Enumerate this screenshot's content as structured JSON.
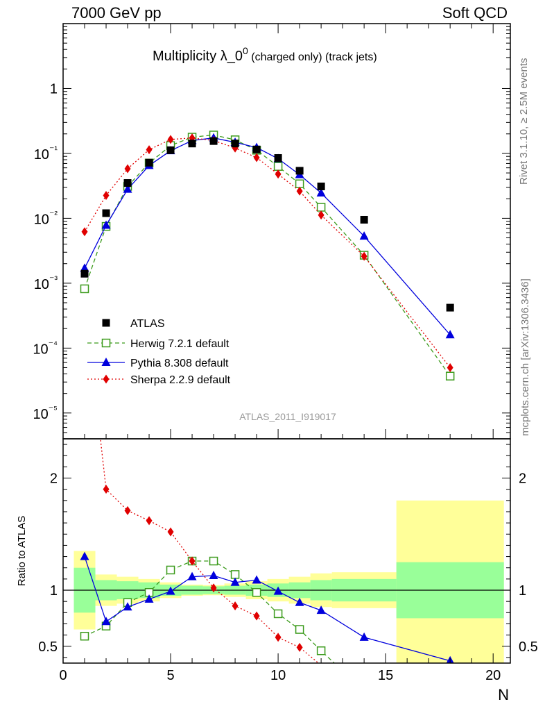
{
  "header": {
    "left": "7000 GeV pp",
    "right": "Soft QCD"
  },
  "side": {
    "rivet": "Rivet 3.1.10, ≥ 2.5M events",
    "mcplots": "mcplots.cern.ch [arXiv:1306.3436]"
  },
  "colors": {
    "atlas": "#000000",
    "herwig": "#3a9a1a",
    "pythia": "#0000dd",
    "sherpa": "#e00000",
    "band_inner": "#99ff99",
    "band_outer": "#ffff99"
  },
  "chart_data": [
    {
      "type": "scatter",
      "panel": "main",
      "title": "Multiplicity λ_0",
      "title_sup": "0",
      "title_suffix": "(charged only) (track jets)",
      "watermark": "ATLAS_2011_I919017",
      "yscale": "log",
      "xlim": [
        0,
        20.8
      ],
      "ylim": [
        4e-06,
        10
      ],
      "ytick_labels": [
        "10⁻⁵",
        "10⁻⁴",
        "10⁻³",
        "10⁻²",
        "10⁻¹",
        "1"
      ],
      "legend_position": "lower-left",
      "series": [
        {
          "name": "ATLAS",
          "style": "data",
          "x": [
            1,
            2,
            3,
            4,
            5,
            6,
            7,
            8,
            9,
            10,
            11,
            12,
            14,
            18
          ],
          "values": [
            0.0014,
            0.012,
            0.035,
            0.072,
            0.112,
            0.142,
            0.155,
            0.142,
            0.115,
            0.085,
            0.054,
            0.031,
            0.0095,
            0.00042
          ]
        },
        {
          "name": "Herwig 7.2.1 default",
          "style": "dashed",
          "marker": "open-square",
          "x": [
            1,
            2,
            3,
            4,
            5,
            6,
            7,
            8,
            9,
            10,
            11,
            12,
            14,
            18
          ],
          "values": [
            0.00082,
            0.0075,
            0.031,
            0.071,
            0.132,
            0.178,
            0.192,
            0.162,
            0.112,
            0.063,
            0.034,
            0.0148,
            0.0027,
            3.7e-05
          ]
        },
        {
          "name": "Pythia 8.308 default",
          "style": "solid",
          "marker": "triangle",
          "x": [
            1,
            2,
            3,
            4,
            5,
            6,
            7,
            8,
            9,
            10,
            11,
            12,
            14,
            18
          ],
          "values": [
            0.0017,
            0.0078,
            0.028,
            0.065,
            0.11,
            0.158,
            0.173,
            0.148,
            0.123,
            0.083,
            0.047,
            0.0245,
            0.0053,
            0.00016
          ]
        },
        {
          "name": "Sherpa 2.2.9 default",
          "style": "dotted",
          "marker": "diamond",
          "x": [
            1,
            2,
            3,
            4,
            5,
            6,
            7,
            8,
            9,
            10,
            11,
            12,
            14,
            18
          ],
          "values": [
            0.0062,
            0.0225,
            0.058,
            0.114,
            0.164,
            0.173,
            0.158,
            0.121,
            0.086,
            0.048,
            0.0262,
            0.0112,
            0.0026,
            5e-05
          ]
        }
      ]
    },
    {
      "type": "line",
      "panel": "ratio",
      "xlabel": "N",
      "ylabel": "Ratio to ATLAS",
      "xlim": [
        0,
        20.8
      ],
      "ylim": [
        0.35,
        2.35
      ],
      "xticks": [
        0,
        5,
        10,
        15,
        20
      ],
      "xtick_labels": [
        "0",
        "5",
        "10",
        "15",
        "20"
      ],
      "yticks": [
        0.5,
        1,
        2
      ],
      "ytick_labels": [
        "0.5",
        "1",
        "2"
      ],
      "reference_line": 1,
      "uncertainty_bands": {
        "bins": [
          [
            0.5,
            1.5
          ],
          [
            1.5,
            2.5
          ],
          [
            2.5,
            3.5
          ],
          [
            3.5,
            4.5
          ],
          [
            4.5,
            5.5
          ],
          [
            5.5,
            6.5
          ],
          [
            6.5,
            7.5
          ],
          [
            7.5,
            8.5
          ],
          [
            8.5,
            9.5
          ],
          [
            9.5,
            10.5
          ],
          [
            10.5,
            11.5
          ],
          [
            11.5,
            12.5
          ],
          [
            12.5,
            15.5
          ],
          [
            15.5,
            20.5
          ]
        ],
        "inner_half_width": [
          0.2,
          0.09,
          0.08,
          0.07,
          0.05,
          0.04,
          0.035,
          0.04,
          0.05,
          0.06,
          0.07,
          0.09,
          0.1,
          0.25
        ],
        "outer_half_width": [
          0.35,
          0.14,
          0.12,
          0.1,
          0.07,
          0.05,
          0.045,
          0.06,
          0.08,
          0.1,
          0.12,
          0.15,
          0.16,
          0.8
        ]
      },
      "series": [
        {
          "name": "Herwig 7.2.1 default",
          "style": "dashed",
          "marker": "open-square",
          "x": [
            1,
            2,
            3,
            4,
            5,
            6,
            7,
            8,
            9,
            10,
            11,
            12,
            13
          ],
          "values": [
            0.59,
            0.68,
            0.89,
            0.98,
            1.18,
            1.26,
            1.26,
            1.14,
            0.98,
            0.79,
            0.65,
            0.46,
            0.28
          ]
        },
        {
          "name": "Pythia 8.308 default",
          "style": "solid",
          "marker": "triangle",
          "x": [
            1,
            2,
            3,
            4,
            5,
            6,
            7,
            8,
            9,
            10,
            11,
            12,
            14,
            18
          ],
          "values": [
            1.3,
            0.72,
            0.85,
            0.92,
            0.99,
            1.12,
            1.13,
            1.07,
            1.09,
            0.99,
            0.89,
            0.82,
            0.58,
            0.37
          ]
        },
        {
          "name": "Sherpa 2.2.9 default",
          "style": "dotted",
          "marker": "diamond",
          "x": [
            1,
            2,
            3,
            4,
            5,
            6,
            7,
            8,
            9,
            10,
            11,
            12
          ],
          "values": [
            3.6,
            1.9,
            1.71,
            1.62,
            1.52,
            1.26,
            1.02,
            0.86,
            0.77,
            0.58,
            0.49,
            0.33
          ]
        }
      ]
    }
  ]
}
